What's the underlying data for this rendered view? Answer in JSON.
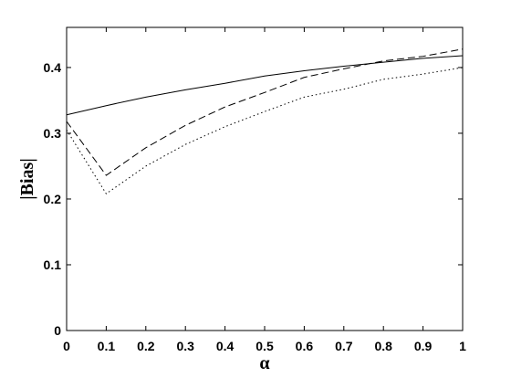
{
  "chart_data": {
    "type": "line",
    "x_label": "α",
    "y_label": "|Bias|",
    "x": [
      0,
      0.1,
      0.2,
      0.3,
      0.4,
      0.5,
      0.6,
      0.7,
      0.8,
      0.9,
      1
    ],
    "series": [
      {
        "color": "#000000",
        "line_style": "solid",
        "values": [
          0.328,
          0.342,
          0.355,
          0.366,
          0.376,
          0.387,
          0.395,
          0.402,
          0.408,
          0.414,
          0.418
        ]
      },
      {
        "color": "#000000",
        "line_style": "dashed",
        "values": [
          0.318,
          0.236,
          0.278,
          0.312,
          0.34,
          0.362,
          0.385,
          0.398,
          0.41,
          0.417,
          0.428
        ]
      },
      {
        "color": "#000000",
        "line_style": "dotted",
        "values": [
          0.305,
          0.208,
          0.25,
          0.283,
          0.31,
          0.333,
          0.355,
          0.367,
          0.382,
          0.39,
          0.4
        ]
      }
    ],
    "xlim": [
      0,
      1
    ],
    "xticks": [
      0,
      0.1,
      0.2,
      0.3,
      0.4,
      0.5,
      0.6,
      0.7,
      0.8,
      0.9,
      1
    ],
    "ylim": [
      0,
      0.461
    ],
    "yticks": [
      0,
      0.1,
      0.2,
      0.3,
      0.4
    ],
    "grid": false
  }
}
